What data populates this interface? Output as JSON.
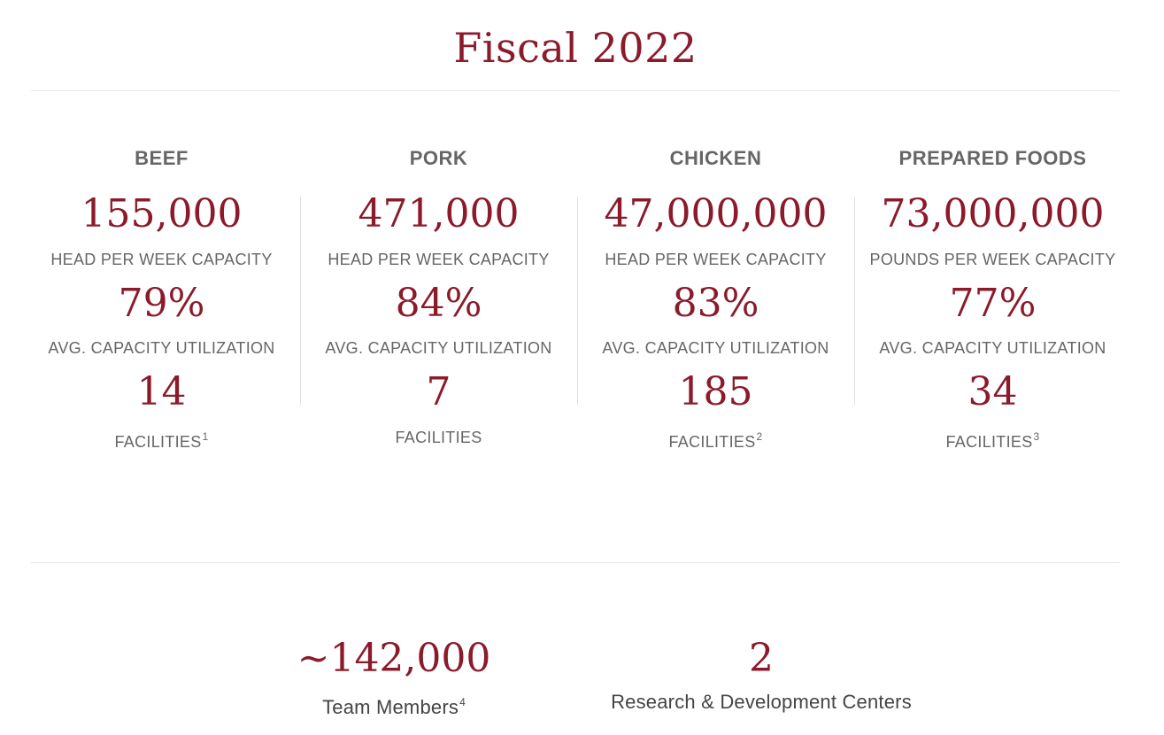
{
  "title": "Fiscal 2022",
  "segments": [
    {
      "name": "BEEF",
      "capacity": "155,000",
      "capacity_label": "HEAD PER WEEK CAPACITY",
      "utilization": "79%",
      "utilization_label": "AVG. CAPACITY UTILIZATION",
      "facilities": "14",
      "facilities_label": "FACILITIES",
      "footnote": "1"
    },
    {
      "name": "PORK",
      "capacity": "471,000",
      "capacity_label": "HEAD PER WEEK CAPACITY",
      "utilization": "84%",
      "utilization_label": "AVG. CAPACITY UTILIZATION",
      "facilities": "7",
      "facilities_label": "FACILITIES",
      "footnote": ""
    },
    {
      "name": "CHICKEN",
      "capacity": "47,000,000",
      "capacity_label": "HEAD PER WEEK CAPACITY",
      "utilization": "83%",
      "utilization_label": "AVG. CAPACITY UTILIZATION",
      "facilities": "185",
      "facilities_label": "FACILITIES",
      "footnote": "2"
    },
    {
      "name": "PREPARED FOODS",
      "capacity": "73,000,000",
      "capacity_label": "POUNDS PER WEEK CAPACITY",
      "utilization": "77%",
      "utilization_label": "AVG. CAPACITY UTILIZATION",
      "facilities": "34",
      "facilities_label": "FACILITIES",
      "footnote": "3"
    }
  ],
  "totals": {
    "team_members_value": "~142,000",
    "team_members_label": "Team Members",
    "team_members_footnote": "4",
    "rd_centers_value": "2",
    "rd_centers_label": "Research & Development Centers"
  },
  "colors": {
    "accent": "#8b1a2b",
    "label": "#666666",
    "rule": "#e6e6e6"
  }
}
